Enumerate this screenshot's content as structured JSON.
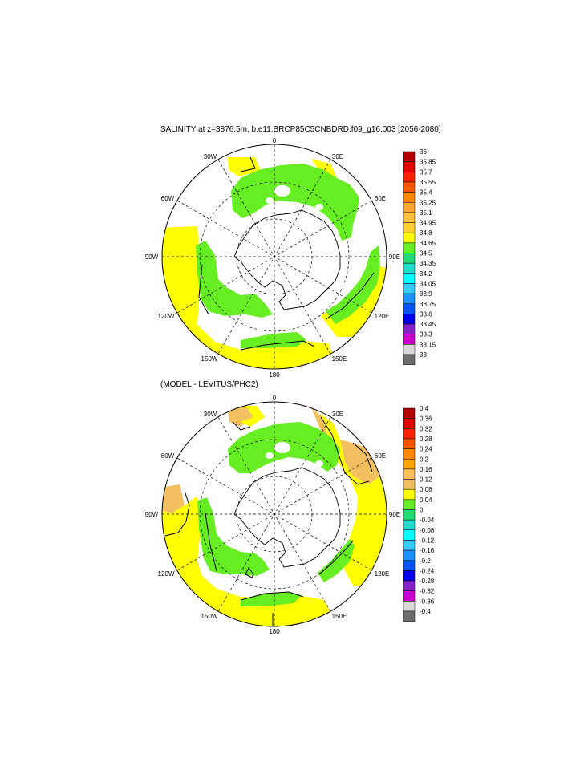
{
  "top_title": "SALINITY at z=3876.5m, b.e11.BRCP85C5CNBDRD.f09_g16.003 [2056-2080]",
  "bottom_title": "(MODEL - LEVITUS/PHC2)",
  "top_map": {
    "lon_labels": [
      "0",
      "30E",
      "60E",
      "90E",
      "120E",
      "150E",
      "180",
      "150W",
      "120W",
      "90W",
      "60W",
      "30W"
    ],
    "colorbar": {
      "labels": [
        "36",
        "35.85",
        "35.7",
        "35.55",
        "35.4",
        "35.25",
        "35.1",
        "34.95",
        "34.8",
        "34.65",
        "34.5",
        "34.35",
        "34.2",
        "34.05",
        "33.9",
        "33.75",
        "33.6",
        "33.45",
        "33.3",
        "33.15",
        "33"
      ],
      "colors": [
        "#b30000",
        "#e00000",
        "#ff2200",
        "#ff5500",
        "#ff8800",
        "#ffa533",
        "#ffc040",
        "#ffd030",
        "#ffff00",
        "#66ee22",
        "#22dd77",
        "#22ddcc",
        "#00ffff",
        "#33ccff",
        "#1e90ff",
        "#0055ff",
        "#0000ee",
        "#8822cc",
        "#cc00cc",
        "#d9d9d9",
        "#6e6e6e"
      ]
    }
  },
  "bottom_map": {
    "lon_labels": [
      "0",
      "30E",
      "60E",
      "90E",
      "120E",
      "150E",
      "180",
      "150W",
      "120W",
      "90W",
      "60W",
      "30W"
    ],
    "colorbar": {
      "labels": [
        "0.4",
        "0.36",
        "0.32",
        "0.28",
        "0.24",
        "0.2",
        "0.16",
        "0.12",
        "0.08",
        "0.04",
        "0",
        "-0.04",
        "-0.08",
        "-0.12",
        "-0.16",
        "-0.2",
        "-0.24",
        "-0.28",
        "-0.32",
        "-0.36",
        "-0.4"
      ],
      "colors": [
        "#b30000",
        "#e00000",
        "#ff2200",
        "#ff5500",
        "#ff8800",
        "#ffa500",
        "#ffc05a",
        "#f2c060",
        "#ffff00",
        "#66ee22",
        "#22dd77",
        "#22ddcc",
        "#00ffff",
        "#33ccff",
        "#1e90ff",
        "#0055ff",
        "#0000ee",
        "#8822cc",
        "#cc00cc",
        "#d9d9d9",
        "#6e6e6e"
      ]
    }
  }
}
